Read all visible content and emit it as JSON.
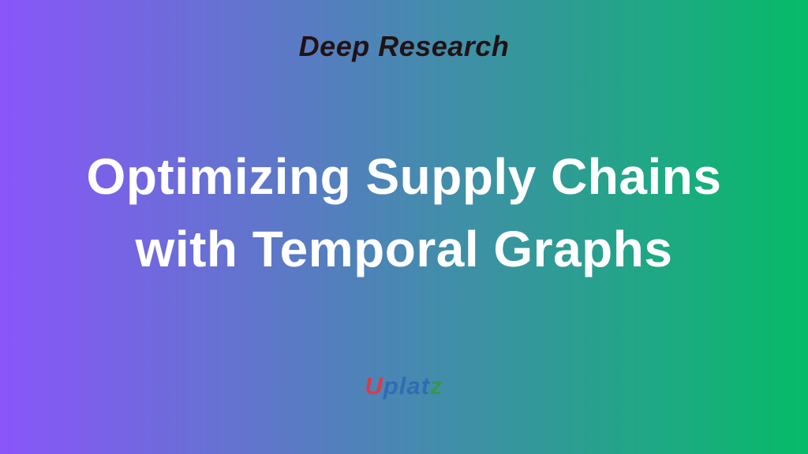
{
  "background": {
    "gradient_from": "#8a55fa",
    "gradient_to": "#06bb68"
  },
  "kicker": {
    "text": "Deep Research",
    "color": "#211215"
  },
  "title": {
    "line1": "Optimizing Supply Chains",
    "line2": "with Temporal Graphs",
    "color": "#ffffff"
  },
  "logo": {
    "name": "Uplatz",
    "segments": [
      {
        "text": "U",
        "color": "#dd3a45"
      },
      {
        "text": "plat",
        "color": "#2e6cb5"
      },
      {
        "text": "z",
        "color": "#34984d"
      }
    ]
  }
}
